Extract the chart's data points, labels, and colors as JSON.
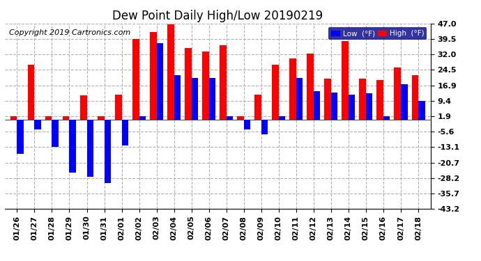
{
  "title": "Dew Point Daily High/Low 20190219",
  "copyright": "Copyright 2019 Cartronics.com",
  "dates": [
    "01/26",
    "01/27",
    "01/28",
    "01/29",
    "01/30",
    "01/31",
    "02/01",
    "02/02",
    "02/03",
    "02/04",
    "02/05",
    "02/06",
    "02/07",
    "02/08",
    "02/09",
    "02/10",
    "02/11",
    "02/12",
    "02/13",
    "02/14",
    "02/15",
    "02/16",
    "02/17",
    "02/18"
  ],
  "high": [
    1.9,
    27.0,
    1.9,
    1.9,
    12.0,
    1.9,
    12.5,
    39.5,
    43.0,
    46.5,
    35.0,
    33.5,
    36.5,
    1.9,
    12.5,
    27.0,
    30.0,
    32.5,
    20.0,
    38.5,
    20.0,
    19.5,
    25.5,
    22.0
  ],
  "low": [
    -16.5,
    -4.5,
    -13.0,
    -25.5,
    -27.5,
    -30.5,
    -12.5,
    1.9,
    37.5,
    22.0,
    20.5,
    20.5,
    1.9,
    -4.5,
    -7.0,
    1.9,
    20.5,
    14.0,
    13.5,
    12.5,
    13.0,
    1.9,
    17.5,
    9.4
  ],
  "yticks": [
    47.0,
    39.5,
    32.0,
    24.5,
    16.9,
    9.4,
    1.9,
    -5.6,
    -13.1,
    -20.7,
    -28.2,
    -35.7,
    -43.2
  ],
  "ylim": [
    -43.2,
    47.0
  ],
  "high_color": "#ff0000",
  "low_color": "#0000ff",
  "bg_color": "#ffffff",
  "grid_color": "#b0b0b0",
  "bar_width": 0.38,
  "title_fontsize": 12,
  "copyright_fontsize": 8,
  "tick_fontsize": 8,
  "legend_high_label": "High  (°F)",
  "legend_low_label": "Low  (°F)"
}
